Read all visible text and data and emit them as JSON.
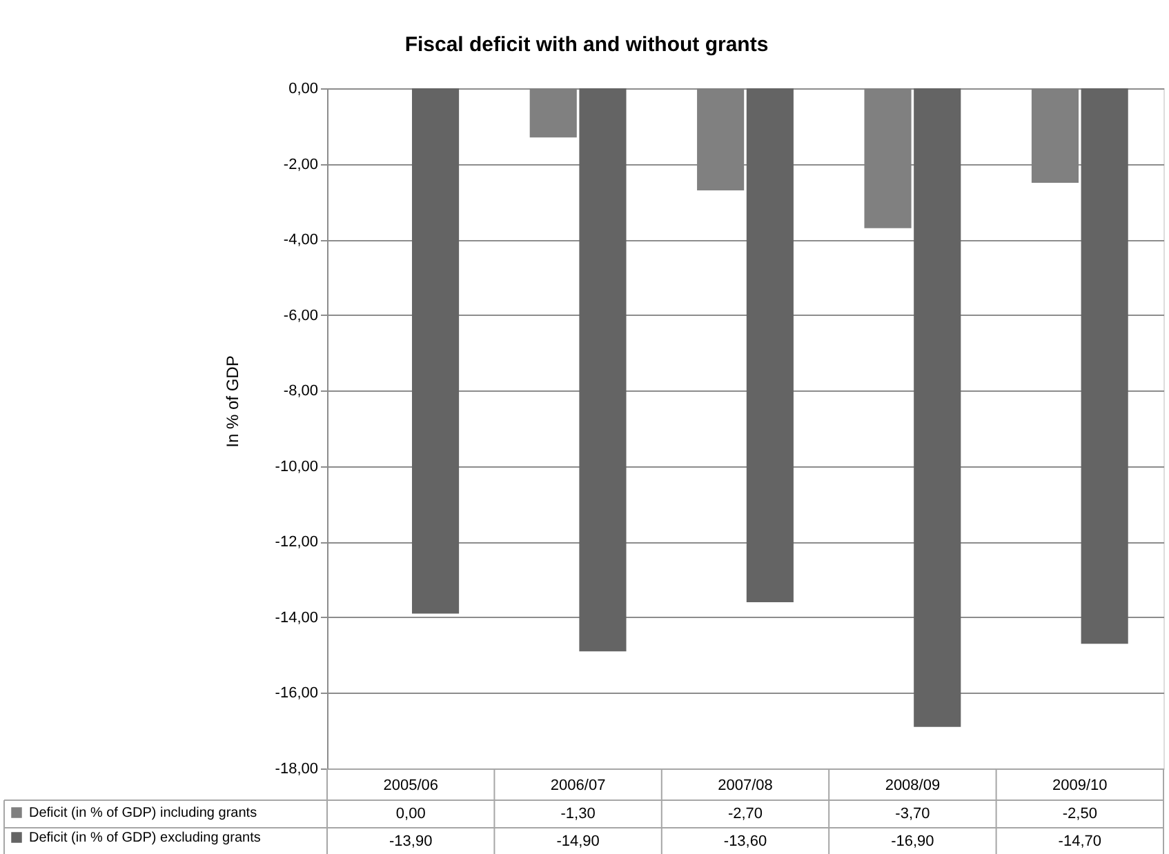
{
  "chart_data": {
    "type": "bar",
    "title": "Fiscal deficit with and without grants",
    "ylabel": "In % of GDP",
    "categories": [
      "2005/06",
      "2006/07",
      "2007/08",
      "2008/09",
      "2009/10"
    ],
    "series": [
      {
        "name": "Deficit (in % of GDP) including grants",
        "color": "#808080",
        "values": [
          0,
          -1.3,
          -2.7,
          -3.7,
          -2.5
        ],
        "value_labels": [
          "0,00",
          "-1,30",
          "-2,70",
          "-3,70",
          "-2,50"
        ]
      },
      {
        "name": "Deficit (in % of GDP) excluding grants",
        "color": "#646464",
        "values": [
          -13.9,
          -14.9,
          -13.6,
          -16.9,
          -14.7
        ],
        "value_labels": [
          "-13,90",
          "-14,90",
          "-13,60",
          "-16,90",
          "-14,70"
        ]
      }
    ],
    "ylim": [
      -18,
      0
    ],
    "yticks": [
      {
        "value": 0,
        "label": "0,00"
      },
      {
        "value": -2,
        "label": "-2,00"
      },
      {
        "value": -4,
        "label": "-4,00"
      },
      {
        "value": -6,
        "label": "-6,00"
      },
      {
        "value": -8,
        "label": "-8,00"
      },
      {
        "value": -10,
        "label": "-10,00"
      },
      {
        "value": -12,
        "label": "-12,00"
      },
      {
        "value": -14,
        "label": "-14,00"
      },
      {
        "value": -16,
        "label": "-16,00"
      },
      {
        "value": -18,
        "label": "-18,00"
      }
    ],
    "grid": "y",
    "legend": "bottom"
  }
}
